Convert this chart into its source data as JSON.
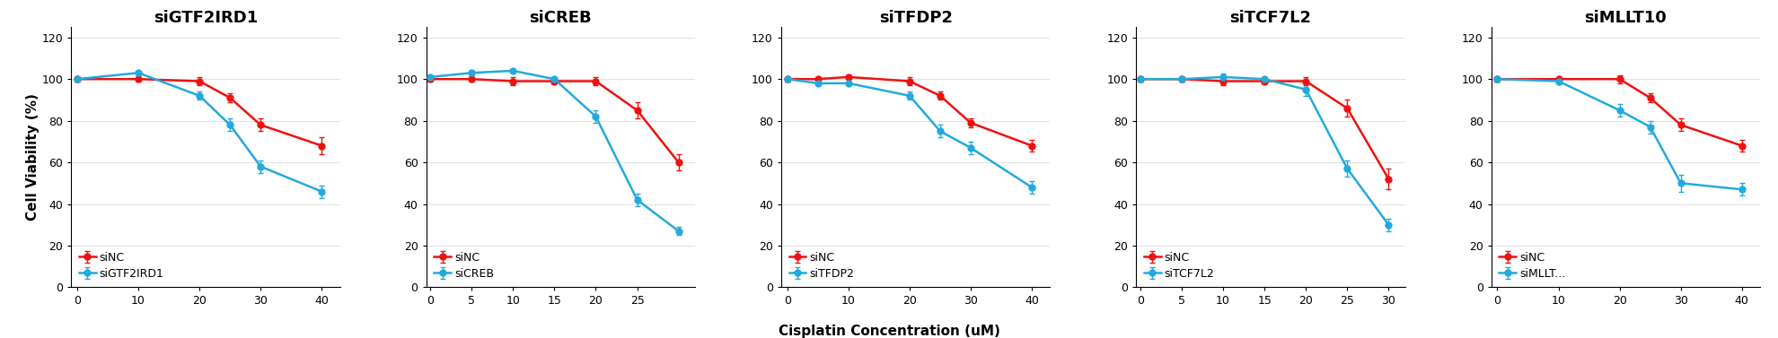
{
  "panels": [
    {
      "title": "siGTF2IRD1",
      "xticks": [
        0,
        10,
        20,
        30,
        40
      ],
      "siNC_x": [
        0,
        10,
        20,
        25,
        30,
        40
      ],
      "siNC_y": [
        100,
        100,
        99,
        91,
        78,
        68
      ],
      "siNC_yerr": [
        1.0,
        1.0,
        2.0,
        2.0,
        3.0,
        4.0
      ],
      "siKD_x": [
        0,
        10,
        20,
        25,
        30,
        40
      ],
      "siKD_y": [
        100,
        103,
        92,
        78,
        58,
        46
      ],
      "siKD_yerr": [
        1.0,
        1.0,
        2.0,
        3.0,
        3.0,
        3.0
      ],
      "siKD_label": "siGTF2IRD1",
      "xlim": [
        -1,
        43
      ],
      "ylim": [
        0,
        125
      ],
      "yticks": [
        0,
        20,
        40,
        60,
        80,
        100,
        120
      ]
    },
    {
      "title": "siCREB",
      "xticks": [
        0,
        5,
        10,
        15,
        20,
        25
      ],
      "siNC_x": [
        0,
        5,
        10,
        15,
        20,
        25,
        30
      ],
      "siNC_y": [
        100,
        100,
        99,
        99,
        99,
        85,
        60
      ],
      "siNC_yerr": [
        1.0,
        1.0,
        2.0,
        1.0,
        2.0,
        4.0,
        4.0
      ],
      "siKD_x": [
        0,
        5,
        10,
        15,
        20,
        25,
        30
      ],
      "siKD_y": [
        101,
        103,
        104,
        100,
        82,
        42,
        27
      ],
      "siKD_yerr": [
        1.0,
        1.0,
        1.0,
        1.0,
        3.0,
        3.0,
        2.0
      ],
      "siKD_label": "siCREB",
      "xlim": [
        -0.5,
        32
      ],
      "ylim": [
        0,
        125
      ],
      "yticks": [
        0,
        20,
        40,
        60,
        80,
        100,
        120
      ]
    },
    {
      "title": "siTFDP2",
      "xticks": [
        0,
        10,
        20,
        30,
        40
      ],
      "siNC_x": [
        0,
        5,
        10,
        20,
        25,
        30,
        40
      ],
      "siNC_y": [
        100,
        100,
        101,
        99,
        92,
        79,
        68
      ],
      "siNC_yerr": [
        1.0,
        1.0,
        1.0,
        2.0,
        2.0,
        2.0,
        3.0
      ],
      "siKD_x": [
        0,
        5,
        10,
        20,
        25,
        30,
        40
      ],
      "siKD_y": [
        100,
        98,
        98,
        92,
        75,
        67,
        48
      ],
      "siKD_yerr": [
        1.0,
        1.0,
        1.0,
        2.0,
        3.0,
        3.0,
        3.0
      ],
      "siKD_label": "siTFDP2",
      "xlim": [
        -1,
        43
      ],
      "ylim": [
        0,
        125
      ],
      "yticks": [
        0,
        20,
        40,
        60,
        80,
        100,
        120
      ]
    },
    {
      "title": "siTCF7L2",
      "xticks": [
        0,
        5,
        10,
        15,
        20,
        25,
        30
      ],
      "siNC_x": [
        0,
        5,
        10,
        15,
        20,
        25,
        30
      ],
      "siNC_y": [
        100,
        100,
        99,
        99,
        99,
        86,
        52
      ],
      "siNC_yerr": [
        1.0,
        1.0,
        2.0,
        1.0,
        2.0,
        4.0,
        5.0
      ],
      "siKD_x": [
        0,
        5,
        10,
        15,
        20,
        25,
        30
      ],
      "siKD_y": [
        100,
        100,
        101,
        100,
        95,
        57,
        30
      ],
      "siKD_yerr": [
        1.0,
        1.0,
        1.5,
        1.0,
        3.0,
        4.0,
        3.0
      ],
      "siKD_label": "siTCF7L2",
      "xlim": [
        -0.5,
        32
      ],
      "ylim": [
        0,
        125
      ],
      "yticks": [
        0,
        20,
        40,
        60,
        80,
        100,
        120
      ]
    },
    {
      "title": "siMLLT10",
      "xticks": [
        0,
        10,
        20,
        30,
        40
      ],
      "siNC_x": [
        0,
        10,
        20,
        25,
        30,
        40
      ],
      "siNC_y": [
        100,
        100,
        100,
        91,
        78,
        68
      ],
      "siNC_yerr": [
        1.0,
        1.0,
        2.0,
        2.0,
        3.0,
        3.0
      ],
      "siKD_x": [
        0,
        10,
        20,
        25,
        30,
        40
      ],
      "siKD_y": [
        100,
        99,
        85,
        77,
        50,
        47
      ],
      "siKD_yerr": [
        1.0,
        1.5,
        3.0,
        3.0,
        4.0,
        3.0
      ],
      "siKD_label": "siMLLT...",
      "xlim": [
        -1,
        43
      ],
      "ylim": [
        0,
        125
      ],
      "yticks": [
        0,
        20,
        40,
        60,
        80,
        100,
        120
      ]
    }
  ],
  "sinc_color": "#EE1111",
  "sikd_color": "#22AADD",
  "marker": "o",
  "markersize": 5,
  "linewidth": 1.8,
  "xlabel": "Cisplatin Concentration (uM)",
  "ylabel": "Cell Viability (%)",
  "title_fontsize": 13,
  "axis_label_fontsize": 11,
  "tick_fontsize": 9,
  "legend_fontsize": 9
}
